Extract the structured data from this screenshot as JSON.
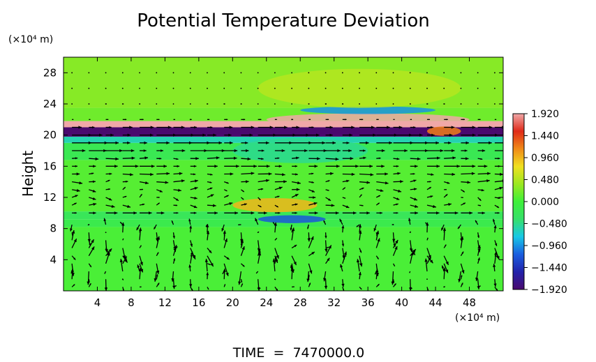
{
  "chart_data": {
    "type": "heatmap",
    "title": "Potential Temperature Deviation",
    "ylabel": "Height",
    "yunit": "(×10⁴ m)",
    "xunit": "(×10⁴ m)",
    "footer": "TIME  =  7470000.0",
    "xlim": [
      0,
      52
    ],
    "ylim": [
      0,
      30
    ],
    "xticks": [
      4,
      8,
      12,
      16,
      20,
      24,
      28,
      32,
      36,
      40,
      44,
      48
    ],
    "yticks": [
      4,
      8,
      12,
      16,
      20,
      24,
      28
    ],
    "xtick_labels": [
      "4",
      "8",
      "12",
      "16",
      "20",
      "24",
      "28",
      "32",
      "36",
      "40",
      "44",
      "48"
    ],
    "ytick_labels": [
      "4",
      "8",
      "12",
      "16",
      "20",
      "24",
      "28"
    ],
    "colorbar": {
      "min": -1.92,
      "max": 1.92,
      "ticks": [
        1.92,
        1.44,
        0.96,
        0.48,
        0.0,
        -0.48,
        -0.96,
        -1.44,
        -1.92
      ],
      "tick_labels": [
        "1.920",
        "1.440",
        "0.960",
        "0.480",
        "0.000",
        "−0.480",
        "−0.960",
        "−1.440",
        "−1.920"
      ],
      "colors": [
        "#4a0a6e",
        "#2222aa",
        "#1a5ee0",
        "#17c8e6",
        "#36e06a",
        "#3ef03a",
        "#9ce820",
        "#f0e020",
        "#f08a18",
        "#e02a18",
        "#f0a8a8"
      ]
    },
    "bands": [
      {
        "y0": 0.0,
        "y1": 8.2,
        "value": 0.05
      },
      {
        "y0": 8.2,
        "y1": 9.2,
        "value": -0.15
      },
      {
        "y0": 9.2,
        "y1": 10.2,
        "value": -0.25
      },
      {
        "y0": 10.2,
        "y1": 16.8,
        "value": 0.1
      },
      {
        "y0": 16.8,
        "y1": 19.0,
        "value": -0.2
      },
      {
        "y0": 19.0,
        "y1": 19.8,
        "value": -0.6
      },
      {
        "y0": 19.8,
        "y1": 21.0,
        "value": -1.92
      },
      {
        "y0": 21.0,
        "y1": 21.8,
        "value": 1.92
      },
      {
        "y0": 21.8,
        "y1": 23.5,
        "value": 0.2
      },
      {
        "y0": 23.5,
        "y1": 30.0,
        "value": 0.3
      }
    ],
    "features": [
      {
        "x": 36,
        "y": 22.0,
        "rx": 12,
        "ry": 0.8,
        "value": 1.92
      },
      {
        "x": 36,
        "y": 23.2,
        "rx": 8,
        "ry": 0.5,
        "value": -0.96
      },
      {
        "x": 27,
        "y": 9.2,
        "rx": 4,
        "ry": 0.5,
        "value": -1.2
      },
      {
        "x": 28,
        "y": 18.0,
        "rx": 8,
        "ry": 1.6,
        "value": -0.5
      },
      {
        "x": 25,
        "y": 11.0,
        "rx": 5,
        "ry": 0.9,
        "value": 0.96
      },
      {
        "x": 35,
        "y": 26.0,
        "rx": 12,
        "ry": 2.5,
        "value": 0.5
      },
      {
        "x": 45,
        "y": 20.5,
        "rx": 2,
        "ry": 0.6,
        "value": 1.2
      }
    ],
    "wind_field": {
      "description": "black arrow vectors overlaid on grid",
      "x_spacing": 2,
      "y_spacing": 1,
      "rows": [
        {
          "y": 0.5,
          "u": 0.3,
          "w": 0.5
        },
        {
          "y": 1.5,
          "u": 0.1,
          "w": 1.4
        },
        {
          "y": 2.5,
          "u": -0.2,
          "w": 1.6
        },
        {
          "y": 3.5,
          "u": 0.4,
          "w": 1.5
        },
        {
          "y": 4.5,
          "u": 0.6,
          "w": 1.3
        },
        {
          "y": 5.5,
          "u": 0.5,
          "w": 1.4
        },
        {
          "y": 6.5,
          "u": 0.2,
          "w": 1.5
        },
        {
          "y": 7.5,
          "u": 0.1,
          "w": 1.2
        },
        {
          "y": 8.5,
          "u": -0.3,
          "w": 0.8
        },
        {
          "y": 10.0,
          "u": 1.4,
          "w": 0.0
        },
        {
          "y": 11.0,
          "u": 0.9,
          "w": 0.3
        },
        {
          "y": 12.0,
          "u": 0.7,
          "w": 0.4
        },
        {
          "y": 13.0,
          "u": 0.8,
          "w": 0.3
        },
        {
          "y": 14.0,
          "u": 1.2,
          "w": 0.2
        },
        {
          "y": 15.0,
          "u": 1.4,
          "w": 0.1
        },
        {
          "y": 16.0,
          "u": 1.6,
          "w": 0.0
        },
        {
          "y": 17.0,
          "u": 1.3,
          "w": 0.1
        },
        {
          "y": 18.0,
          "u": 1.8,
          "w": 0.0
        },
        {
          "y": 19.0,
          "u": 2.0,
          "w": 0.0
        },
        {
          "y": 20.0,
          "u": 2.1,
          "w": 0.0
        },
        {
          "y": 21.0,
          "u": 1.5,
          "w": 0.0
        },
        {
          "y": 22.0,
          "u": 0.4,
          "w": 0.0
        },
        {
          "y": 24.0,
          "u": 0.1,
          "w": 0.0
        },
        {
          "y": 26.0,
          "u": 0.05,
          "w": 0.0
        },
        {
          "y": 28.0,
          "u": 0.02,
          "w": 0.0
        }
      ]
    }
  }
}
